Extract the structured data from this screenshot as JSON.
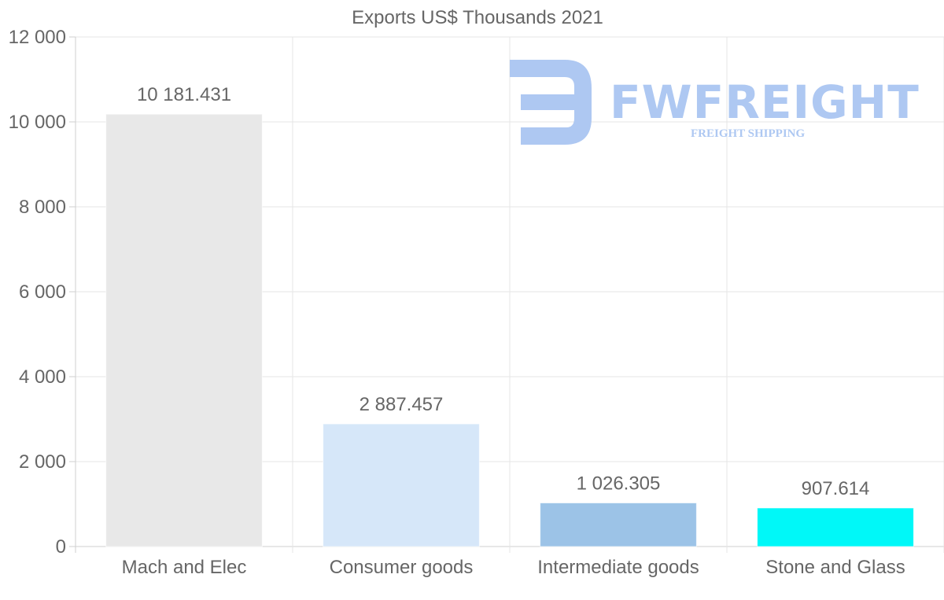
{
  "watermark": {
    "brand": "FWFREIGHT",
    "tagline": "FREIGHT SHIPPING",
    "color": "#aec8f2"
  },
  "chart_data": {
    "type": "bar",
    "title": "Exports US$ Thousands 2021",
    "xlabel": "",
    "ylabel": "",
    "ylim": [
      0,
      12000
    ],
    "yticks": [
      0,
      2000,
      4000,
      6000,
      8000,
      10000,
      12000
    ],
    "ytick_labels": [
      "0",
      "2 000",
      "4 000",
      "6 000",
      "8 000",
      "10 000",
      "12 000"
    ],
    "categories": [
      "Mach and Elec",
      "Consumer goods",
      "Intermediate goods",
      "Stone and Glass"
    ],
    "values": [
      10181.431,
      2887.457,
      1026.305,
      907.614
    ],
    "value_labels": [
      "10 181.431",
      "2 887.457",
      "1 026.305",
      "907.614"
    ],
    "colors": [
      "#e8e8e8",
      "#d6e7f9",
      "#9cc3e7",
      "#00f8f8"
    ],
    "grid": true,
    "legend": "none"
  }
}
